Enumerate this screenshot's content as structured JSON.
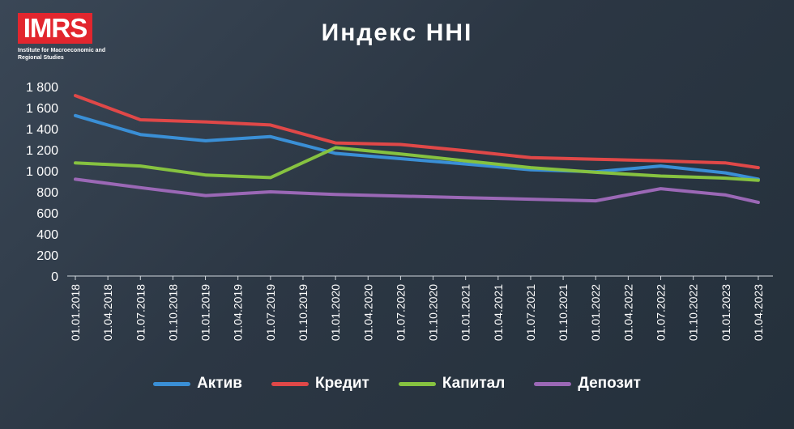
{
  "logo": {
    "text": "IMRS",
    "subtitle": "Institute for Macroeconomic and Regional Studies"
  },
  "chart_data": {
    "type": "line",
    "title": "Индекс HHI",
    "categories": [
      "01.01.2018",
      "01.04.2018",
      "01.07.2018",
      "01.10.2018",
      "01.01.2019",
      "01.04.2019",
      "01.07.2019",
      "01.10.2019",
      "01.01.2020",
      "01.04.2020",
      "01.07.2020",
      "01.10.2020",
      "01.01.2021",
      "01.04.2021",
      "01.07.2021",
      "01.10.2021",
      "01.01.2022",
      "01.04.2022",
      "01.07.2022",
      "01.10.2022",
      "01.01.2023",
      "01.04.2023"
    ],
    "ylim": [
      0,
      1800
    ],
    "yticks": [
      "0",
      "200",
      "400",
      "600",
      "800",
      "1 000",
      "1 200",
      "1 400",
      "1 600",
      "1 800"
    ],
    "grid": false,
    "legend_position": "bottom",
    "series": [
      {
        "name": "Актив",
        "color": "#3a8fd6",
        "values": [
          1525,
          null,
          1345,
          null,
          1285,
          null,
          1325,
          null,
          1165,
          null,
          1115,
          null,
          1065,
          null,
          1010,
          null,
          990,
          null,
          1045,
          null,
          980,
          920
        ]
      },
      {
        "name": "Кредит",
        "color": "#e04848",
        "values": [
          1715,
          null,
          1485,
          null,
          1465,
          null,
          1435,
          null,
          1265,
          null,
          1250,
          null,
          1190,
          null,
          1125,
          null,
          1110,
          null,
          1095,
          null,
          1075,
          1030
        ]
      },
      {
        "name": "Капитал",
        "color": "#86c240",
        "values": [
          1075,
          null,
          1045,
          null,
          960,
          null,
          935,
          null,
          1220,
          null,
          1160,
          null,
          1095,
          null,
          1030,
          null,
          985,
          null,
          950,
          null,
          930,
          910
        ]
      },
      {
        "name": "Депозит",
        "color": "#9b68b6",
        "values": [
          920,
          null,
          840,
          null,
          765,
          null,
          800,
          null,
          775,
          null,
          760,
          null,
          745,
          null,
          730,
          null,
          715,
          null,
          830,
          null,
          770,
          700
        ]
      }
    ]
  }
}
